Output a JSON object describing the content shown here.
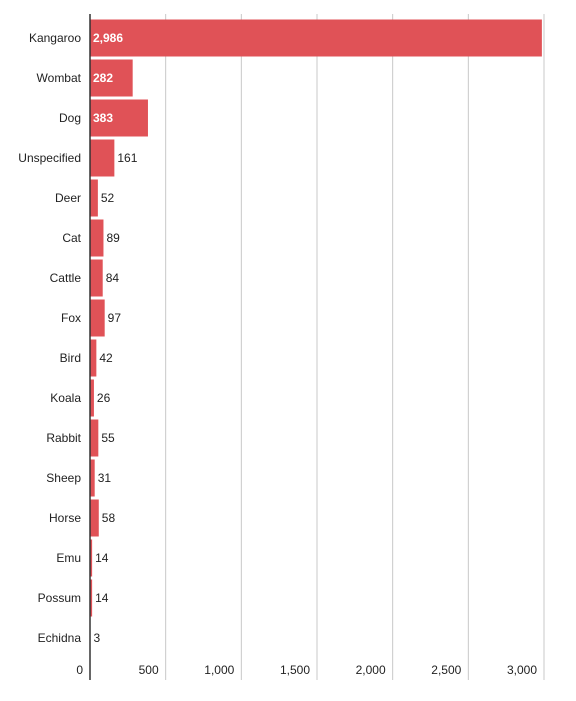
{
  "chart_data": {
    "type": "bar",
    "orientation": "horizontal",
    "categories": [
      "Kangaroo",
      "Wombat",
      "Dog",
      "Unspecified",
      "Deer",
      "Cat",
      "Cattle",
      "Fox",
      "Bird",
      "Koala",
      "Rabbit",
      "Sheep",
      "Horse",
      "Emu",
      "Possum",
      "Echidna"
    ],
    "values": [
      2986,
      282,
      383,
      161,
      52,
      89,
      84,
      97,
      42,
      26,
      55,
      31,
      58,
      14,
      14,
      3
    ],
    "value_labels": [
      "2,986",
      "282",
      "383",
      "161",
      "52",
      "89",
      "84",
      "97",
      "42",
      "26",
      "55",
      "31",
      "58",
      "14",
      "14",
      "3"
    ],
    "color": "#e05257",
    "xlim": [
      0,
      3000
    ],
    "xticks": [
      0,
      500,
      {
        "value": 1000,
        "label": "1,000"
      },
      {
        "value": 1500,
        "label": "1,500"
      },
      {
        "value": 2000,
        "label": "2,000"
      },
      {
        "value": 2500,
        "label": "2,500"
      },
      {
        "value": 3000,
        "label": "3,000"
      }
    ],
    "grid": true
  }
}
